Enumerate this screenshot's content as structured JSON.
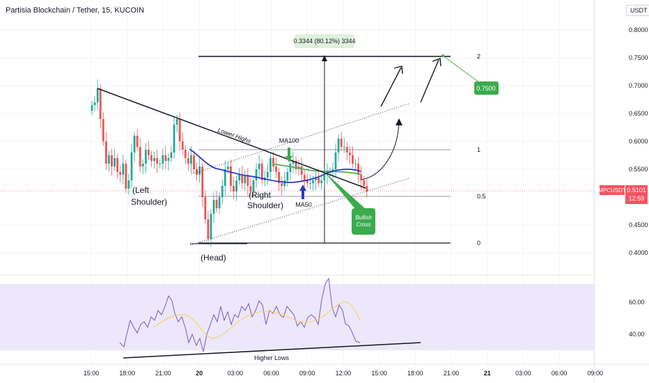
{
  "header": {
    "title": "Partisia Blockchain / Tether, 15, KUCOIN",
    "currency": "USDT"
  },
  "price_tag": {
    "symbol": "MPCUSDT",
    "value": "0.5101",
    "countdown": "12:59"
  },
  "annotations": {
    "measure_label": "0.3344 (80.12%) 3344",
    "target_label": "0.7500",
    "lower_highs": "Lower Highs",
    "ma100": "MA100",
    "ma50": "MA50",
    "left_shoulder_1": "(Left",
    "left_shoulder_2": "Shoulder)",
    "right_shoulder_1": "(Right",
    "right_shoulder_2": "Shoulder)",
    "head": "(Head)",
    "bullish_1": "Bullish",
    "bullish_2": "Cross",
    "higher_lows": "Higher Lows",
    "fib_2": "2",
    "fib_1": "1",
    "fib_05": "0.5",
    "fib_0": "0"
  },
  "chart_data": [
    {
      "type": "candlestick",
      "title": "",
      "y_axis_ticks": [
        "0.8000",
        "0.7500",
        "0.7000",
        "0.6500",
        "0.6000",
        "0.5500",
        "0.4500",
        "0.4000"
      ],
      "x_axis_ticks": [
        "15:00",
        "18:00",
        "21:00",
        "20",
        "03:00",
        "06:00",
        "09:00",
        "12:00",
        "15:00",
        "18:00",
        "21:00",
        "21",
        "03:00",
        "06:00",
        "09:00"
      ],
      "ylim": [
        0.38,
        0.82
      ],
      "current_price": 0.5101,
      "fib_levels": [
        {
          "label": "2",
          "price": 0.7503
        },
        {
          "label": "1",
          "price": 0.5862
        },
        {
          "label": "0.5",
          "price": 0.5042
        },
        {
          "label": "0",
          "price": 0.4222
        }
      ],
      "closes": [
        0.665,
        0.67,
        0.695,
        0.64,
        0.6,
        0.56,
        0.575,
        0.555,
        0.57,
        0.545,
        0.54,
        0.56,
        0.515,
        0.53,
        0.58,
        0.61,
        0.59,
        0.555,
        0.56,
        0.585,
        0.575,
        0.565,
        0.57,
        0.56,
        0.56,
        0.575,
        0.565,
        0.57,
        0.58,
        0.63,
        0.64,
        0.6,
        0.585,
        0.57,
        0.56,
        0.575,
        0.55,
        0.54,
        0.555,
        0.5,
        0.46,
        0.425,
        0.47,
        0.495,
        0.48,
        0.5,
        0.52,
        0.55,
        0.555,
        0.52,
        0.51,
        0.53,
        0.54,
        0.525,
        0.54,
        0.52,
        0.51,
        0.53,
        0.55,
        0.56,
        0.53,
        0.535,
        0.545,
        0.57,
        0.555,
        0.545,
        0.525,
        0.52,
        0.53,
        0.545,
        0.56,
        0.565,
        0.55,
        0.555,
        0.54,
        0.53,
        0.525,
        0.525,
        0.53,
        0.535,
        0.525,
        0.53,
        0.54,
        0.545,
        0.545,
        0.55,
        0.58,
        0.605,
        0.59,
        0.59,
        0.58,
        0.575,
        0.56,
        0.56,
        0.54,
        0.53,
        0.52,
        0.51
      ]
    },
    {
      "type": "line",
      "title": "",
      "y_axis_ticks": [
        "60.00",
        "40.00"
      ],
      "ylim": [
        25,
        78
      ],
      "band": [
        30,
        70
      ]
    }
  ]
}
